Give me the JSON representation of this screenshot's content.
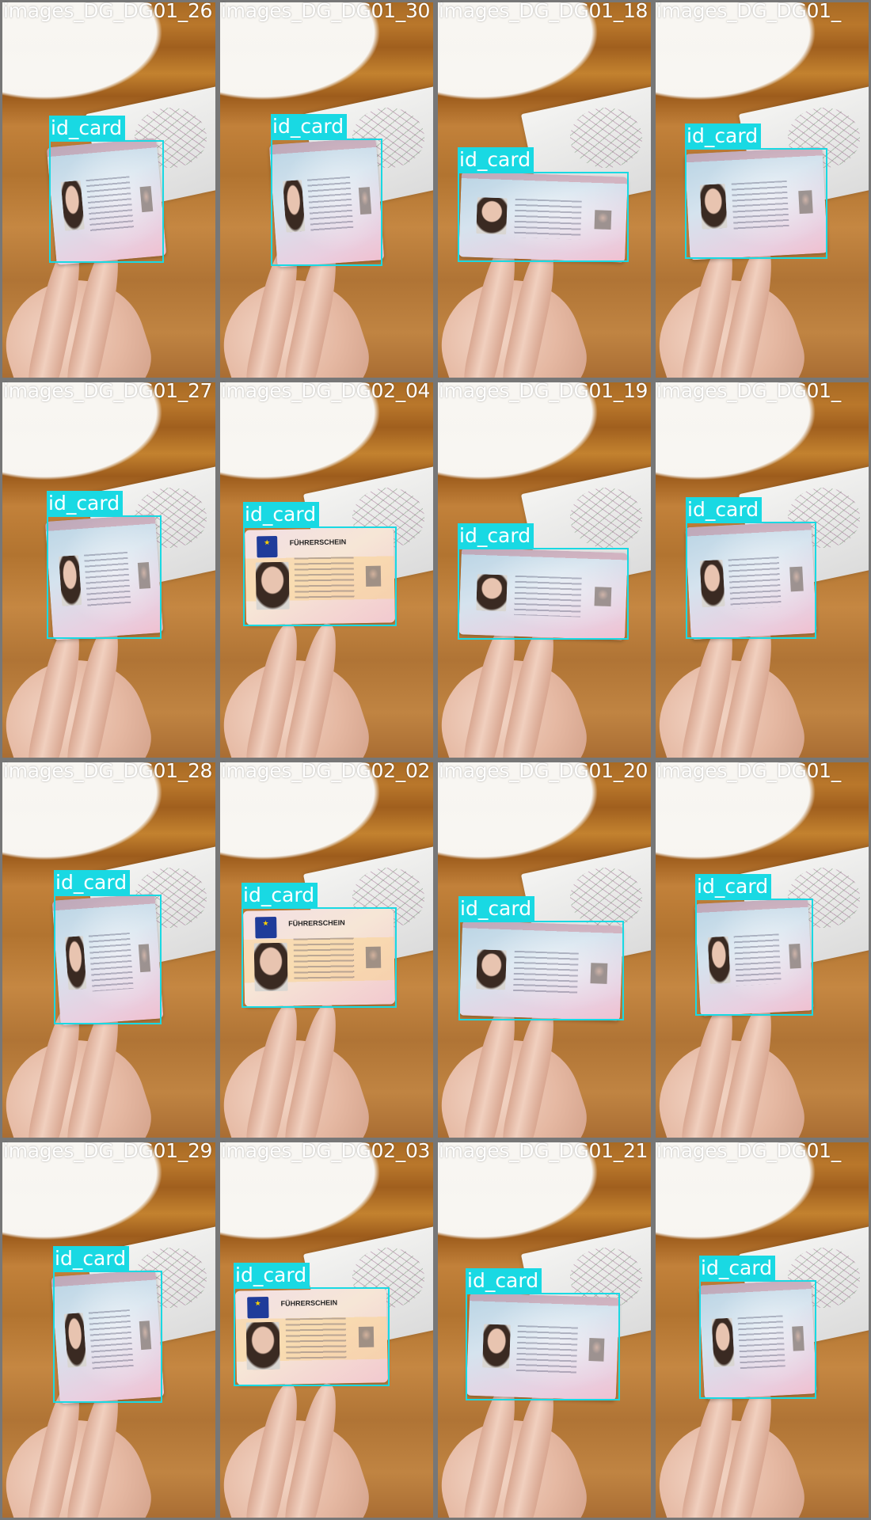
{
  "colors": {
    "box": "#19d9e3",
    "separator": "#777777",
    "title_text": "#ffffff"
  },
  "box_label": "id_card",
  "tiles": [
    {
      "title": "images_DG_DG01_26",
      "card": "al"
    },
    {
      "title": "images_DG_DG01_30",
      "card": "al"
    },
    {
      "title": "images_DG_DG01_18",
      "card": "al"
    },
    {
      "title": "images_DG_DG01_",
      "card": "al"
    },
    {
      "title": "images_DG_DG01_27",
      "card": "al"
    },
    {
      "title": "images_DG_DG02_04",
      "card": "de"
    },
    {
      "title": "images_DG_DG01_19",
      "card": "al"
    },
    {
      "title": "images_DG_DG01_",
      "card": "al"
    },
    {
      "title": "images_DG_DG01_28",
      "card": "al"
    },
    {
      "title": "images_DG_DG02_02",
      "card": "de"
    },
    {
      "title": "images_DG_DG01_20",
      "card": "al"
    },
    {
      "title": "images_DG_DG01_",
      "card": "al"
    },
    {
      "title": "images_DG_DG01_29",
      "card": "al"
    },
    {
      "title": "images_DG_DG02_03",
      "card": "de"
    },
    {
      "title": "images_DG_DG01_21",
      "card": "al"
    },
    {
      "title": "images_DG_DG01_",
      "card": "al"
    }
  ],
  "card_text": {
    "de_title": "FÜHRERSCHEIN"
  }
}
